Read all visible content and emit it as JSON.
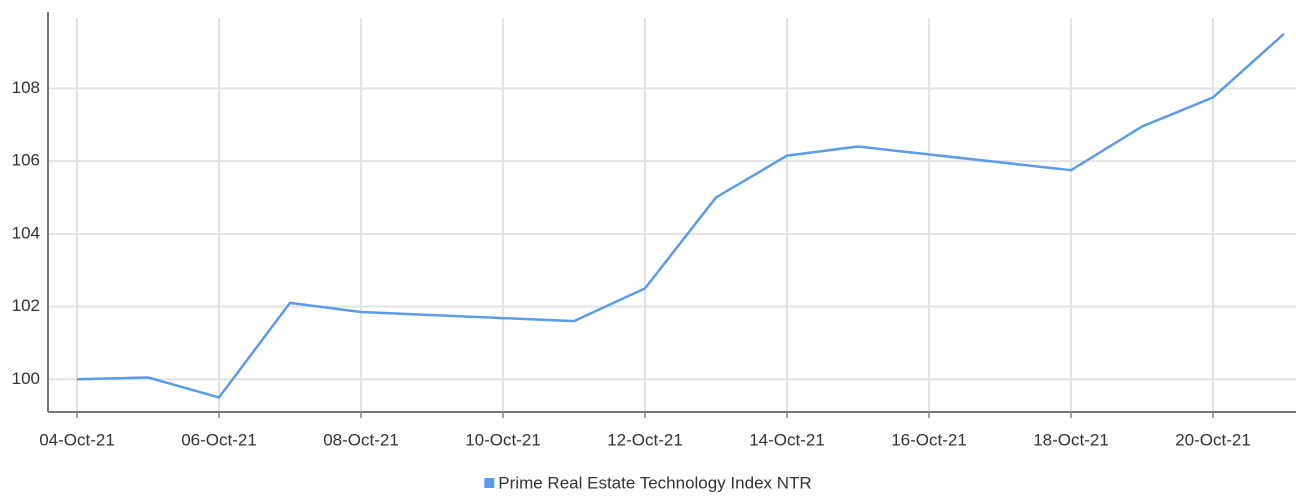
{
  "chart_data": {
    "type": "line",
    "x": [
      "2021-10-04",
      "2021-10-05",
      "2021-10-06",
      "2021-10-07",
      "2021-10-08",
      "2021-10-11",
      "2021-10-12",
      "2021-10-13",
      "2021-10-14",
      "2021-10-15",
      "2021-10-18",
      "2021-10-19",
      "2021-10-20",
      "2021-10-21"
    ],
    "series": [
      {
        "name": "Prime Real Estate Technology Index NTR",
        "color": "#5a9bec",
        "values": [
          100.0,
          100.05,
          99.5,
          102.1,
          101.85,
          101.6,
          102.5,
          105.0,
          106.15,
          106.4,
          105.75,
          106.95,
          107.75,
          109.5
        ]
      }
    ],
    "xlim": [
      "2021-10-04",
      "2021-10-21"
    ],
    "xticks": [
      {
        "value": "2021-10-04",
        "label": "04-Oct-21"
      },
      {
        "value": "2021-10-06",
        "label": "06-Oct-21"
      },
      {
        "value": "2021-10-08",
        "label": "08-Oct-21"
      },
      {
        "value": "2021-10-10",
        "label": "10-Oct-21"
      },
      {
        "value": "2021-10-12",
        "label": "12-Oct-21"
      },
      {
        "value": "2021-10-14",
        "label": "14-Oct-21"
      },
      {
        "value": "2021-10-16",
        "label": "16-Oct-21"
      },
      {
        "value": "2021-10-18",
        "label": "18-Oct-21"
      },
      {
        "value": "2021-10-20",
        "label": "20-Oct-21"
      }
    ],
    "ylim": [
      99.1,
      110.1
    ],
    "yticks": [
      100,
      102,
      104,
      106,
      108
    ],
    "grid": true,
    "legend": "bottom"
  }
}
